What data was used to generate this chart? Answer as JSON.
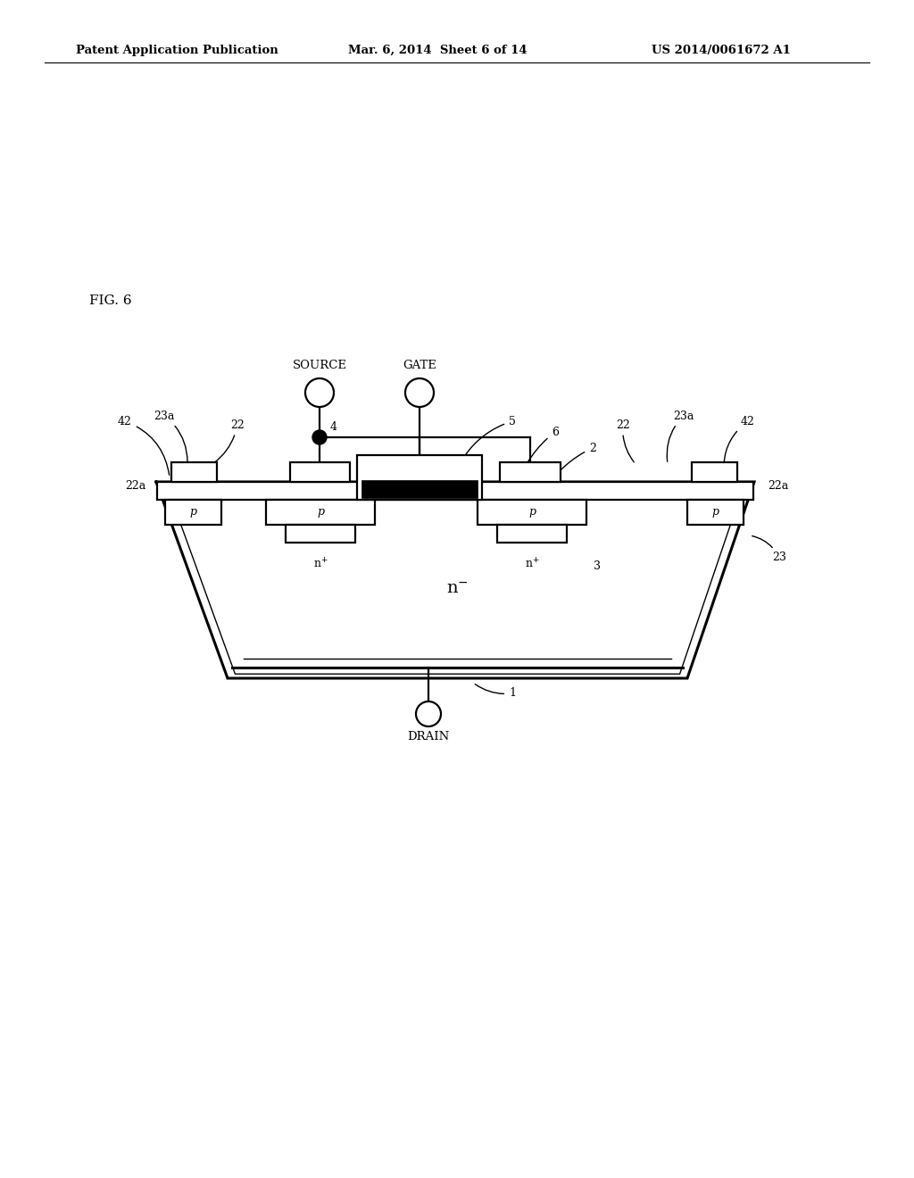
{
  "bg_color": "#ffffff",
  "header_left": "Patent Application Publication",
  "header_mid": "Mar. 6, 2014  Sheet 6 of 14",
  "header_right": "US 2014/0061672 A1",
  "fig_label": "FIG. 6",
  "lw": 1.6,
  "lw_thick": 2.2,
  "lw_thin": 1.0
}
